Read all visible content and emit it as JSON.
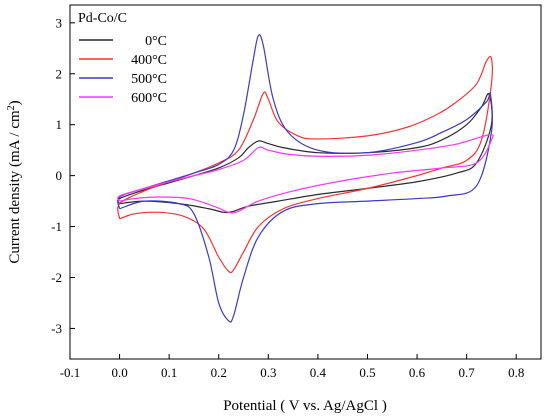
{
  "chart_data": {
    "type": "line",
    "annotation": "Pd-Co/C",
    "xlabel": "Potential ( V vs. Ag/AgCl )",
    "ylabel_main": "Current density (mA / cm",
    "ylabel_sup": "2",
    "ylabel_end": ")",
    "xlim": [
      -0.1,
      0.85
    ],
    "ylim": [
      -3.6,
      3.35
    ],
    "x_ticks": [
      {
        "v": -0.1,
        "label": "-0.1"
      },
      {
        "v": 0.0,
        "label": "0.0"
      },
      {
        "v": 0.1,
        "label": "0.1"
      },
      {
        "v": 0.2,
        "label": "0.2"
      },
      {
        "v": 0.3,
        "label": "0.3"
      },
      {
        "v": 0.4,
        "label": "0.4"
      },
      {
        "v": 0.5,
        "label": "0.5"
      },
      {
        "v": 0.6,
        "label": "0.6"
      },
      {
        "v": 0.7,
        "label": "0.7"
      },
      {
        "v": 0.8,
        "label": "0.8"
      }
    ],
    "y_ticks": [
      {
        "v": 3,
        "label": "3"
      },
      {
        "v": 2,
        "label": "2"
      },
      {
        "v": 1,
        "label": "1"
      },
      {
        "v": 0,
        "label": "0"
      },
      {
        "v": -1,
        "label": "-1"
      },
      {
        "v": -2,
        "label": "-2"
      },
      {
        "v": -3,
        "label": "-3"
      }
    ],
    "grid": false,
    "legend_position": "top-left",
    "series": [
      {
        "name": "0°C",
        "color": "#2b2b2b",
        "points": [
          [
            0.0,
            -0.55
          ],
          [
            0.0,
            -0.45
          ],
          [
            0.05,
            -0.28
          ],
          [
            0.1,
            -0.14
          ],
          [
            0.15,
            0.0
          ],
          [
            0.2,
            0.15
          ],
          [
            0.24,
            0.35
          ],
          [
            0.26,
            0.55
          ],
          [
            0.28,
            0.68
          ],
          [
            0.3,
            0.63
          ],
          [
            0.33,
            0.55
          ],
          [
            0.4,
            0.45
          ],
          [
            0.5,
            0.45
          ],
          [
            0.6,
            0.55
          ],
          [
            0.65,
            0.7
          ],
          [
            0.7,
            1.0
          ],
          [
            0.73,
            1.35
          ],
          [
            0.745,
            1.6
          ],
          [
            0.75,
            1.0
          ],
          [
            0.72,
            0.25
          ],
          [
            0.68,
            0.05
          ],
          [
            0.6,
            -0.12
          ],
          [
            0.5,
            -0.25
          ],
          [
            0.4,
            -0.37
          ],
          [
            0.32,
            -0.5
          ],
          [
            0.26,
            -0.6
          ],
          [
            0.23,
            -0.7
          ],
          [
            0.21,
            -0.72
          ],
          [
            0.18,
            -0.65
          ],
          [
            0.12,
            -0.55
          ],
          [
            0.05,
            -0.5
          ],
          [
            0.0,
            -0.55
          ]
        ]
      },
      {
        "name": "400°C",
        "color": "#ff3030",
        "points": [
          [
            0.0,
            -0.85
          ],
          [
            0.0,
            -0.55
          ],
          [
            0.05,
            -0.3
          ],
          [
            0.1,
            -0.12
          ],
          [
            0.15,
            0.05
          ],
          [
            0.2,
            0.25
          ],
          [
            0.24,
            0.5
          ],
          [
            0.27,
            1.1
          ],
          [
            0.29,
            1.62
          ],
          [
            0.3,
            1.5
          ],
          [
            0.32,
            1.05
          ],
          [
            0.36,
            0.78
          ],
          [
            0.4,
            0.72
          ],
          [
            0.5,
            0.78
          ],
          [
            0.58,
            0.95
          ],
          [
            0.64,
            1.2
          ],
          [
            0.68,
            1.45
          ],
          [
            0.72,
            1.8
          ],
          [
            0.74,
            2.25
          ],
          [
            0.75,
            2.3
          ],
          [
            0.75,
            1.8
          ],
          [
            0.73,
            0.7
          ],
          [
            0.7,
            0.3
          ],
          [
            0.65,
            0.15
          ],
          [
            0.6,
            0.0
          ],
          [
            0.5,
            -0.25
          ],
          [
            0.4,
            -0.45
          ],
          [
            0.33,
            -0.65
          ],
          [
            0.28,
            -1.0
          ],
          [
            0.25,
            -1.5
          ],
          [
            0.23,
            -1.85
          ],
          [
            0.22,
            -1.88
          ],
          [
            0.2,
            -1.6
          ],
          [
            0.17,
            -1.05
          ],
          [
            0.13,
            -0.8
          ],
          [
            0.08,
            -0.72
          ],
          [
            0.03,
            -0.75
          ],
          [
            0.0,
            -0.85
          ]
        ]
      },
      {
        "name": "500°C",
        "color": "#3a3acc",
        "points": [
          [
            0.0,
            -0.65
          ],
          [
            0.0,
            -0.42
          ],
          [
            0.05,
            -0.25
          ],
          [
            0.1,
            -0.1
          ],
          [
            0.15,
            0.05
          ],
          [
            0.2,
            0.22
          ],
          [
            0.23,
            0.5
          ],
          [
            0.25,
            1.2
          ],
          [
            0.27,
            2.3
          ],
          [
            0.28,
            2.75
          ],
          [
            0.29,
            2.55
          ],
          [
            0.31,
            1.5
          ],
          [
            0.34,
            0.85
          ],
          [
            0.4,
            0.5
          ],
          [
            0.5,
            0.45
          ],
          [
            0.6,
            0.65
          ],
          [
            0.65,
            0.85
          ],
          [
            0.7,
            1.1
          ],
          [
            0.74,
            1.45
          ],
          [
            0.748,
            1.6
          ],
          [
            0.75,
            0.85
          ],
          [
            0.72,
            -0.2
          ],
          [
            0.66,
            -0.4
          ],
          [
            0.6,
            -0.45
          ],
          [
            0.5,
            -0.5
          ],
          [
            0.4,
            -0.55
          ],
          [
            0.33,
            -0.7
          ],
          [
            0.28,
            -1.2
          ],
          [
            0.25,
            -2.0
          ],
          [
            0.23,
            -2.75
          ],
          [
            0.22,
            -2.85
          ],
          [
            0.2,
            -2.5
          ],
          [
            0.18,
            -1.6
          ],
          [
            0.15,
            -0.75
          ],
          [
            0.12,
            -0.55
          ],
          [
            0.05,
            -0.5
          ],
          [
            0.0,
            -0.65
          ]
        ]
      },
      {
        "name": "600°C",
        "color": "#ff33ff",
        "points": [
          [
            0.0,
            -0.5
          ],
          [
            0.0,
            -0.4
          ],
          [
            0.05,
            -0.25
          ],
          [
            0.1,
            -0.12
          ],
          [
            0.15,
            0.0
          ],
          [
            0.2,
            0.12
          ],
          [
            0.25,
            0.3
          ],
          [
            0.28,
            0.55
          ],
          [
            0.3,
            0.5
          ],
          [
            0.34,
            0.42
          ],
          [
            0.4,
            0.38
          ],
          [
            0.5,
            0.4
          ],
          [
            0.6,
            0.5
          ],
          [
            0.68,
            0.62
          ],
          [
            0.745,
            0.8
          ],
          [
            0.75,
            0.7
          ],
          [
            0.72,
            0.25
          ],
          [
            0.65,
            0.15
          ],
          [
            0.55,
            0.05
          ],
          [
            0.45,
            -0.1
          ],
          [
            0.35,
            -0.3
          ],
          [
            0.28,
            -0.5
          ],
          [
            0.24,
            -0.7
          ],
          [
            0.22,
            -0.72
          ],
          [
            0.19,
            -0.6
          ],
          [
            0.14,
            -0.45
          ],
          [
            0.08,
            -0.42
          ],
          [
            0.03,
            -0.45
          ],
          [
            0.0,
            -0.5
          ]
        ]
      }
    ]
  }
}
